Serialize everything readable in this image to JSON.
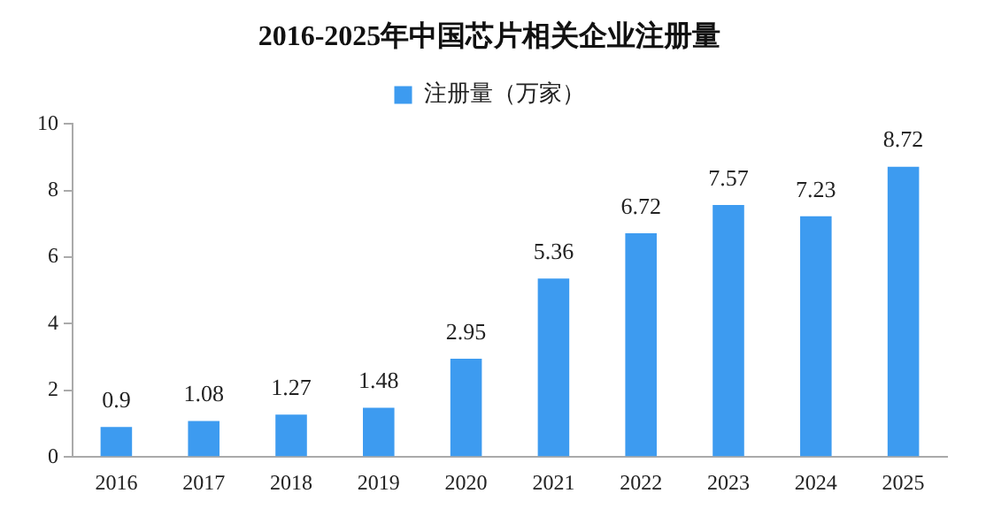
{
  "chart_data": {
    "type": "bar",
    "title": "2016-2025年中国芯片相关企业注册量",
    "categories": [
      "2016",
      "2017",
      "2018",
      "2019",
      "2020",
      "2021",
      "2022",
      "2023",
      "2024",
      "2025"
    ],
    "series": [
      {
        "name": "注册量（万家）",
        "color": "#3d9bf0",
        "values": [
          0.9,
          1.08,
          1.27,
          1.48,
          2.95,
          5.36,
          6.72,
          7.57,
          7.23,
          8.72
        ]
      }
    ],
    "ylim": [
      0,
      10
    ],
    "yticks": [
      0,
      2,
      4,
      6,
      8,
      10
    ],
    "grid": false,
    "legend": "top",
    "data_labels": true
  }
}
